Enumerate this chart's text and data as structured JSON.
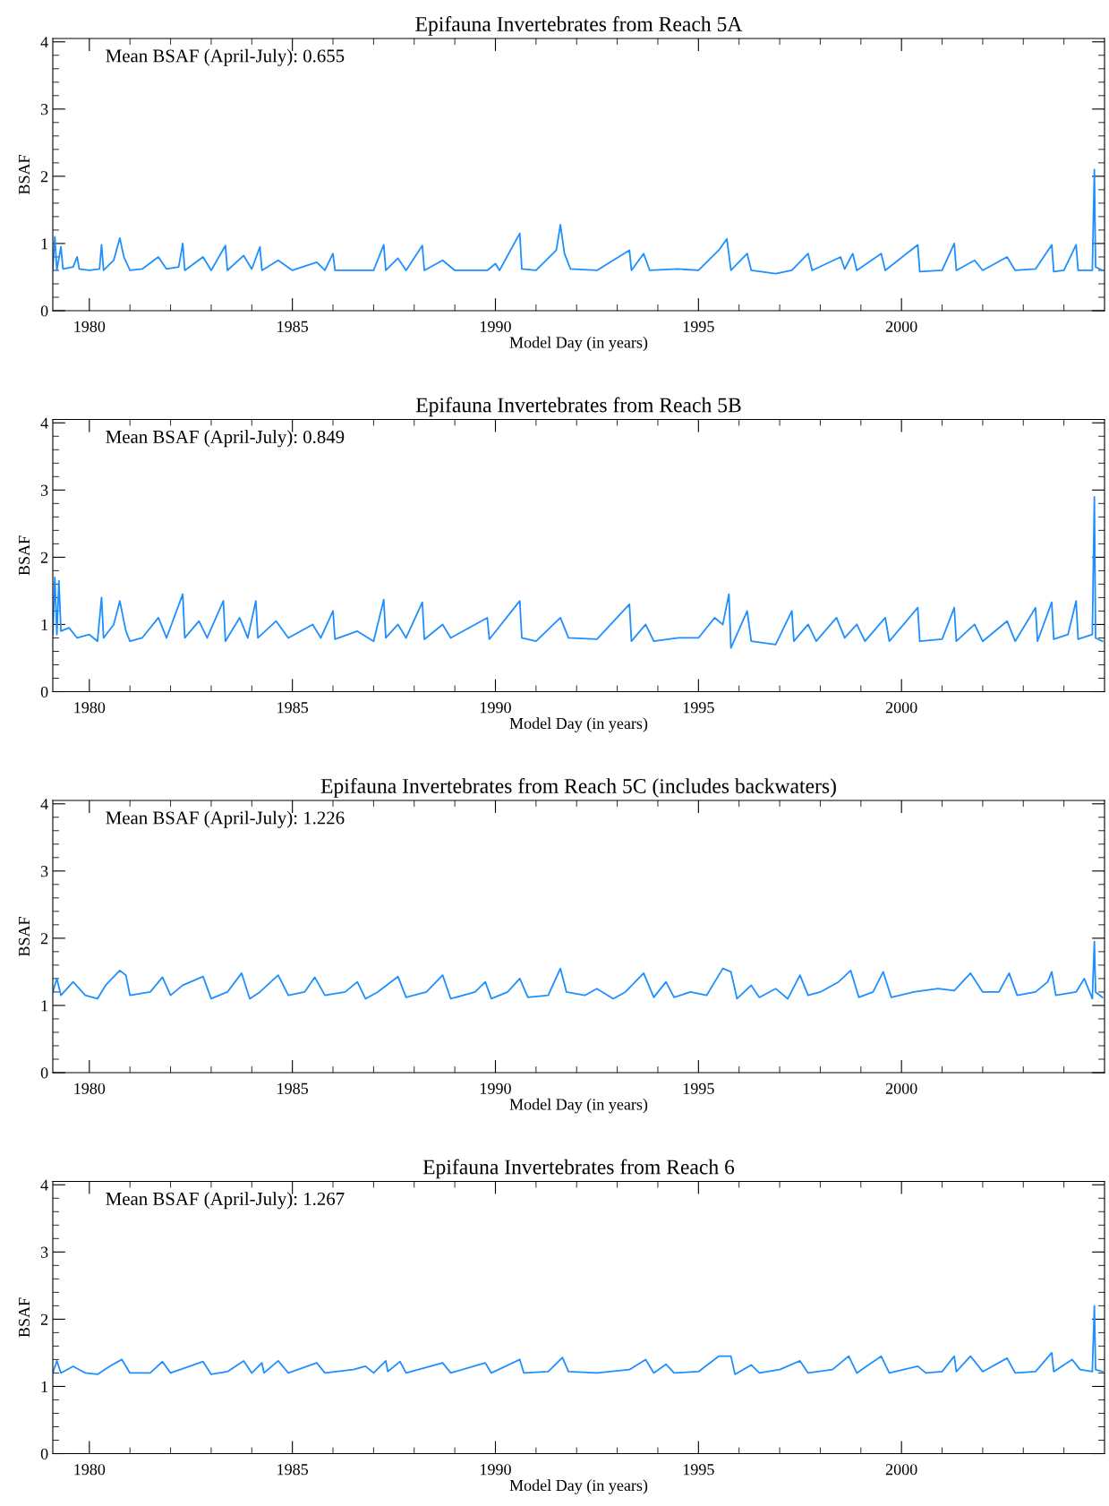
{
  "chart_data": [
    {
      "type": "line",
      "title": "Epifauna Invertebrates from Reach 5A",
      "xlabel": "Model Day (in years)",
      "ylabel": "BSAF",
      "annotations": [
        "Mean BSAF (April-July): 0.655"
      ],
      "xlim": [
        1979.1,
        2005.0
      ],
      "ylim": [
        0,
        4.05
      ],
      "xticks": [
        1980,
        {
          "value": 1981,
          "label": null
        },
        {
          "value": 1982,
          "label": null
        },
        {
          "value": 1983,
          "label": null
        },
        {
          "value": 1984,
          "label": null
        },
        1985,
        {
          "value": 1986,
          "label": null
        },
        {
          "value": 1987,
          "label": null
        },
        {
          "value": 1988,
          "label": null
        },
        {
          "value": 1989,
          "label": null
        },
        1990,
        {
          "value": 1991,
          "label": null
        },
        {
          "value": 1992,
          "label": null
        },
        {
          "value": 1993,
          "label": null
        },
        {
          "value": 1994,
          "label": null
        },
        1995,
        {
          "value": 1996,
          "label": null
        },
        {
          "value": 1997,
          "label": null
        },
        {
          "value": 1998,
          "label": null
        },
        {
          "value": 1999,
          "label": null
        },
        2000,
        {
          "value": 2001,
          "label": null
        },
        {
          "value": 2002,
          "label": null
        },
        {
          "value": 2003,
          "label": null
        },
        {
          "value": 2004,
          "label": null
        }
      ],
      "yticks": [
        0,
        {
          "value": 0.2,
          "label": null
        },
        {
          "value": 0.4,
          "label": null
        },
        {
          "value": 0.6,
          "label": null
        },
        {
          "value": 0.8,
          "label": null
        },
        1,
        {
          "value": 1.2,
          "label": null
        },
        {
          "value": 1.4,
          "label": null
        },
        {
          "value": 1.6,
          "label": null
        },
        {
          "value": 1.8,
          "label": null
        },
        2,
        {
          "value": 2.2,
          "label": null
        },
        {
          "value": 2.4,
          "label": null
        },
        {
          "value": 2.6,
          "label": null
        },
        {
          "value": 2.8,
          "label": null
        },
        3,
        {
          "value": 3.2,
          "label": null
        },
        {
          "value": 3.4,
          "label": null
        },
        {
          "value": 3.6,
          "label": null
        },
        {
          "value": 3.8,
          "label": null
        },
        4
      ],
      "x": [
        1979.1,
        1979.15,
        1979.2,
        1979.3,
        1979.35,
        1979.6,
        1979.7,
        1979.75,
        1980.0,
        1980.25,
        1980.3,
        1980.35,
        1980.6,
        1980.75,
        1980.85,
        1981.0,
        1981.3,
        1981.7,
        1981.9,
        1982.2,
        1982.3,
        1982.35,
        1982.8,
        1983.0,
        1983.35,
        1983.4,
        1983.8,
        1984.0,
        1984.2,
        1984.25,
        1984.65,
        1985.0,
        1985.6,
        1985.8,
        1986.0,
        1986.05,
        1987.0,
        1987.25,
        1987.3,
        1987.6,
        1987.8,
        1988.2,
        1988.25,
        1988.7,
        1989.0,
        1989.8,
        1990.0,
        1990.1,
        1990.6,
        1990.65,
        1991.0,
        1991.5,
        1991.6,
        1991.7,
        1991.85,
        1992.5,
        1993.3,
        1993.35,
        1993.65,
        1993.8,
        1994.5,
        1995.0,
        1995.5,
        1995.7,
        1995.8,
        1996.2,
        1996.3,
        1996.9,
        1997.3,
        1997.7,
        1997.8,
        1998.5,
        1998.6,
        1998.8,
        1998.9,
        1999.5,
        1999.6,
        2000.4,
        2000.45,
        2001.0,
        2001.3,
        2001.35,
        2001.8,
        2002.0,
        2002.6,
        2002.8,
        2003.3,
        2003.7,
        2003.75,
        2004.0,
        2004.3,
        2004.35,
        2004.7,
        2004.75,
        2004.78,
        2004.95
      ],
      "series": [
        {
          "color": "#1e8fff",
          "values": [
            0.62,
            1.1,
            0.6,
            0.95,
            0.62,
            0.65,
            0.8,
            0.62,
            0.6,
            0.62,
            0.98,
            0.6,
            0.75,
            1.08,
            0.8,
            0.6,
            0.62,
            0.8,
            0.62,
            0.65,
            1.0,
            0.6,
            0.8,
            0.6,
            0.97,
            0.6,
            0.82,
            0.62,
            0.95,
            0.6,
            0.75,
            0.6,
            0.72,
            0.6,
            0.85,
            0.6,
            0.6,
            0.98,
            0.6,
            0.78,
            0.6,
            0.97,
            0.6,
            0.75,
            0.6,
            0.6,
            0.7,
            0.6,
            1.15,
            0.62,
            0.6,
            0.9,
            1.28,
            0.85,
            0.62,
            0.6,
            0.9,
            0.6,
            0.85,
            0.6,
            0.62,
            0.6,
            0.9,
            1.07,
            0.6,
            0.85,
            0.6,
            0.55,
            0.6,
            0.85,
            0.6,
            0.8,
            0.62,
            0.85,
            0.6,
            0.85,
            0.6,
            0.98,
            0.58,
            0.6,
            1.0,
            0.6,
            0.75,
            0.6,
            0.8,
            0.6,
            0.62,
            0.98,
            0.58,
            0.6,
            0.98,
            0.6,
            0.6,
            2.1,
            0.65,
            0.6
          ]
        }
      ]
    },
    {
      "type": "line",
      "title": "Epifauna Invertebrates from Reach 5B",
      "xlabel": "Model Day (in years)",
      "ylabel": "BSAF",
      "annotations": [
        "Mean BSAF (April-July): 0.849"
      ],
      "xlim": [
        1979.1,
        2005.0
      ],
      "ylim": [
        0,
        4.05
      ],
      "xticks": [
        1980,
        {
          "value": 1981,
          "label": null
        },
        {
          "value": 1982,
          "label": null
        },
        {
          "value": 1983,
          "label": null
        },
        {
          "value": 1984,
          "label": null
        },
        1985,
        {
          "value": 1986,
          "label": null
        },
        {
          "value": 1987,
          "label": null
        },
        {
          "value": 1988,
          "label": null
        },
        {
          "value": 1989,
          "label": null
        },
        1990,
        {
          "value": 1991,
          "label": null
        },
        {
          "value": 1992,
          "label": null
        },
        {
          "value": 1993,
          "label": null
        },
        {
          "value": 1994,
          "label": null
        },
        1995,
        {
          "value": 1996,
          "label": null
        },
        {
          "value": 1997,
          "label": null
        },
        {
          "value": 1998,
          "label": null
        },
        {
          "value": 1999,
          "label": null
        },
        2000,
        {
          "value": 2001,
          "label": null
        },
        {
          "value": 2002,
          "label": null
        },
        {
          "value": 2003,
          "label": null
        },
        {
          "value": 2004,
          "label": null
        }
      ],
      "yticks": [
        0,
        {
          "value": 0.2,
          "label": null
        },
        {
          "value": 0.4,
          "label": null
        },
        {
          "value": 0.6,
          "label": null
        },
        {
          "value": 0.8,
          "label": null
        },
        1,
        {
          "value": 1.2,
          "label": null
        },
        {
          "value": 1.4,
          "label": null
        },
        {
          "value": 1.6,
          "label": null
        },
        {
          "value": 1.8,
          "label": null
        },
        2,
        {
          "value": 2.2,
          "label": null
        },
        {
          "value": 2.4,
          "label": null
        },
        {
          "value": 2.6,
          "label": null
        },
        {
          "value": 2.8,
          "label": null
        },
        3,
        {
          "value": 3.2,
          "label": null
        },
        {
          "value": 3.4,
          "label": null
        },
        {
          "value": 3.6,
          "label": null
        },
        {
          "value": 3.8,
          "label": null
        },
        4
      ],
      "x": [
        1979.1,
        1979.15,
        1979.2,
        1979.25,
        1979.3,
        1979.5,
        1979.7,
        1980.0,
        1980.2,
        1980.3,
        1980.35,
        1980.6,
        1980.75,
        1980.9,
        1981.0,
        1981.3,
        1981.7,
        1981.9,
        1982.3,
        1982.35,
        1982.7,
        1982.9,
        1983.3,
        1983.35,
        1983.7,
        1983.9,
        1984.1,
        1984.15,
        1984.6,
        1984.9,
        1985.5,
        1985.7,
        1986.0,
        1986.05,
        1986.6,
        1987.0,
        1987.25,
        1987.3,
        1987.6,
        1987.8,
        1988.2,
        1988.25,
        1988.7,
        1988.9,
        1989.8,
        1989.85,
        1990.6,
        1990.65,
        1991.0,
        1991.6,
        1991.8,
        1992.5,
        1993.3,
        1993.35,
        1993.7,
        1993.9,
        1994.5,
        1995.0,
        1995.4,
        1995.6,
        1995.75,
        1995.8,
        1996.2,
        1996.3,
        1996.9,
        1997.3,
        1997.35,
        1997.7,
        1997.9,
        1998.4,
        1998.6,
        1998.9,
        1999.1,
        1999.6,
        1999.7,
        2000.4,
        2000.45,
        2001.0,
        2001.3,
        2001.35,
        2001.8,
        2002.0,
        2002.6,
        2002.8,
        2003.3,
        2003.35,
        2003.7,
        2003.75,
        2004.1,
        2004.3,
        2004.35,
        2004.7,
        2004.75,
        2004.78,
        2004.95
      ],
      "series": [
        {
          "color": "#1e8fff",
          "values": [
            0.85,
            1.7,
            0.85,
            1.65,
            0.9,
            0.95,
            0.8,
            0.85,
            0.75,
            1.4,
            0.8,
            1.0,
            1.35,
            0.9,
            0.75,
            0.8,
            1.1,
            0.8,
            1.45,
            0.8,
            1.05,
            0.8,
            1.35,
            0.75,
            1.1,
            0.8,
            1.35,
            0.8,
            1.05,
            0.8,
            1.0,
            0.8,
            1.2,
            0.78,
            0.9,
            0.75,
            1.37,
            0.8,
            1.0,
            0.8,
            1.33,
            0.78,
            1.0,
            0.8,
            1.1,
            0.78,
            1.35,
            0.8,
            0.75,
            1.1,
            0.8,
            0.78,
            1.3,
            0.75,
            1.0,
            0.75,
            0.8,
            0.8,
            1.1,
            1.0,
            1.45,
            0.65,
            1.2,
            0.75,
            0.7,
            1.2,
            0.75,
            1.0,
            0.75,
            1.1,
            0.8,
            1.0,
            0.75,
            1.1,
            0.75,
            1.25,
            0.75,
            0.78,
            1.25,
            0.75,
            1.0,
            0.75,
            1.05,
            0.75,
            1.25,
            0.75,
            1.33,
            0.78,
            0.85,
            1.35,
            0.78,
            0.85,
            2.9,
            0.8,
            0.75
          ]
        }
      ]
    },
    {
      "type": "line",
      "title": "Epifauna Invertebrates from Reach 5C (includes backwaters)",
      "xlabel": "Model Day (in years)",
      "ylabel": "BSAF",
      "annotations": [
        "Mean BSAF (April-July): 1.226"
      ],
      "xlim": [
        1979.1,
        2005.0
      ],
      "ylim": [
        0,
        4.05
      ],
      "xticks": [
        1980,
        {
          "value": 1981,
          "label": null
        },
        {
          "value": 1982,
          "label": null
        },
        {
          "value": 1983,
          "label": null
        },
        {
          "value": 1984,
          "label": null
        },
        1985,
        {
          "value": 1986,
          "label": null
        },
        {
          "value": 1987,
          "label": null
        },
        {
          "value": 1988,
          "label": null
        },
        {
          "value": 1989,
          "label": null
        },
        1990,
        {
          "value": 1991,
          "label": null
        },
        {
          "value": 1992,
          "label": null
        },
        {
          "value": 1993,
          "label": null
        },
        {
          "value": 1994,
          "label": null
        },
        1995,
        {
          "value": 1996,
          "label": null
        },
        {
          "value": 1997,
          "label": null
        },
        {
          "value": 1998,
          "label": null
        },
        {
          "value": 1999,
          "label": null
        },
        2000,
        {
          "value": 2001,
          "label": null
        },
        {
          "value": 2002,
          "label": null
        },
        {
          "value": 2003,
          "label": null
        },
        {
          "value": 2004,
          "label": null
        }
      ],
      "yticks": [
        0,
        {
          "value": 0.2,
          "label": null
        },
        {
          "value": 0.4,
          "label": null
        },
        {
          "value": 0.6,
          "label": null
        },
        {
          "value": 0.8,
          "label": null
        },
        1,
        {
          "value": 1.2,
          "label": null
        },
        {
          "value": 1.4,
          "label": null
        },
        {
          "value": 1.6,
          "label": null
        },
        {
          "value": 1.8,
          "label": null
        },
        2,
        {
          "value": 2.2,
          "label": null
        },
        {
          "value": 2.4,
          "label": null
        },
        {
          "value": 2.6,
          "label": null
        },
        {
          "value": 2.8,
          "label": null
        },
        3,
        {
          "value": 3.2,
          "label": null
        },
        {
          "value": 3.4,
          "label": null
        },
        {
          "value": 3.6,
          "label": null
        },
        {
          "value": 3.8,
          "label": null
        },
        4
      ],
      "x": [
        1979.1,
        1979.2,
        1979.3,
        1979.6,
        1979.9,
        1980.2,
        1980.4,
        1980.75,
        1980.9,
        1981.0,
        1981.5,
        1981.8,
        1982.0,
        1982.3,
        1982.8,
        1983.0,
        1983.4,
        1983.75,
        1983.95,
        1984.2,
        1984.65,
        1984.9,
        1985.3,
        1985.55,
        1985.8,
        1986.3,
        1986.6,
        1986.8,
        1987.1,
        1987.6,
        1987.8,
        1988.3,
        1988.7,
        1988.9,
        1989.5,
        1989.75,
        1989.9,
        1990.3,
        1990.6,
        1990.8,
        1991.3,
        1991.6,
        1991.75,
        1992.2,
        1992.5,
        1992.9,
        1993.2,
        1993.65,
        1993.9,
        1994.2,
        1994.4,
        1994.8,
        1995.2,
        1995.6,
        1995.8,
        1995.95,
        1996.3,
        1996.5,
        1996.9,
        1997.2,
        1997.5,
        1997.7,
        1998.0,
        1998.45,
        1998.75,
        1998.95,
        1999.3,
        1999.55,
        1999.75,
        2000.3,
        2000.9,
        2001.3,
        2001.7,
        2002.0,
        2002.4,
        2002.65,
        2002.85,
        2003.3,
        2003.6,
        2003.7,
        2003.8,
        2004.3,
        2004.5,
        2004.7,
        2004.75,
        2004.78,
        2004.95
      ],
      "series": [
        {
          "color": "#1e8fff",
          "values": [
            1.2,
            1.4,
            1.15,
            1.35,
            1.15,
            1.1,
            1.3,
            1.52,
            1.45,
            1.15,
            1.2,
            1.42,
            1.15,
            1.3,
            1.43,
            1.1,
            1.2,
            1.48,
            1.1,
            1.2,
            1.45,
            1.15,
            1.2,
            1.42,
            1.15,
            1.2,
            1.35,
            1.1,
            1.2,
            1.43,
            1.12,
            1.2,
            1.45,
            1.1,
            1.2,
            1.35,
            1.1,
            1.2,
            1.4,
            1.12,
            1.15,
            1.55,
            1.2,
            1.15,
            1.25,
            1.1,
            1.2,
            1.48,
            1.12,
            1.35,
            1.12,
            1.2,
            1.15,
            1.55,
            1.5,
            1.1,
            1.3,
            1.12,
            1.25,
            1.1,
            1.45,
            1.15,
            1.2,
            1.35,
            1.52,
            1.12,
            1.2,
            1.5,
            1.12,
            1.2,
            1.25,
            1.22,
            1.48,
            1.2,
            1.2,
            1.48,
            1.15,
            1.2,
            1.35,
            1.5,
            1.15,
            1.2,
            1.4,
            1.1,
            1.95,
            1.2,
            1.12
          ]
        }
      ]
    },
    {
      "type": "line",
      "title": "Epifauna Invertebrates from Reach 6",
      "xlabel": "Model Day (in years)",
      "ylabel": "BSAF",
      "annotations": [
        "Mean BSAF (April-July): 1.267"
      ],
      "xlim": [
        1979.1,
        2005.0
      ],
      "ylim": [
        0,
        4.05
      ],
      "xticks": [
        1980,
        {
          "value": 1981,
          "label": null
        },
        {
          "value": 1982,
          "label": null
        },
        {
          "value": 1983,
          "label": null
        },
        {
          "value": 1984,
          "label": null
        },
        1985,
        {
          "value": 1986,
          "label": null
        },
        {
          "value": 1987,
          "label": null
        },
        {
          "value": 1988,
          "label": null
        },
        {
          "value": 1989,
          "label": null
        },
        1990,
        {
          "value": 1991,
          "label": null
        },
        {
          "value": 1992,
          "label": null
        },
        {
          "value": 1993,
          "label": null
        },
        {
          "value": 1994,
          "label": null
        },
        1995,
        {
          "value": 1996,
          "label": null
        },
        {
          "value": 1997,
          "label": null
        },
        {
          "value": 1998,
          "label": null
        },
        {
          "value": 1999,
          "label": null
        },
        2000,
        {
          "value": 2001,
          "label": null
        },
        {
          "value": 2002,
          "label": null
        },
        {
          "value": 2003,
          "label": null
        },
        {
          "value": 2004,
          "label": null
        }
      ],
      "yticks": [
        0,
        {
          "value": 0.2,
          "label": null
        },
        {
          "value": 0.4,
          "label": null
        },
        {
          "value": 0.6,
          "label": null
        },
        {
          "value": 0.8,
          "label": null
        },
        1,
        {
          "value": 1.2,
          "label": null
        },
        {
          "value": 1.4,
          "label": null
        },
        {
          "value": 1.6,
          "label": null
        },
        {
          "value": 1.8,
          "label": null
        },
        2,
        {
          "value": 2.2,
          "label": null
        },
        {
          "value": 2.4,
          "label": null
        },
        {
          "value": 2.6,
          "label": null
        },
        {
          "value": 2.8,
          "label": null
        },
        3,
        {
          "value": 3.2,
          "label": null
        },
        {
          "value": 3.4,
          "label": null
        },
        {
          "value": 3.6,
          "label": null
        },
        {
          "value": 3.8,
          "label": null
        },
        4
      ],
      "x": [
        1979.1,
        1979.2,
        1979.3,
        1979.6,
        1979.9,
        1980.2,
        1980.5,
        1980.8,
        1981.0,
        1981.5,
        1981.8,
        1982.0,
        1982.8,
        1983.0,
        1983.4,
        1983.8,
        1984.0,
        1984.25,
        1984.3,
        1984.65,
        1984.9,
        1985.6,
        1985.8,
        1986.5,
        1986.8,
        1987.0,
        1987.3,
        1987.35,
        1987.65,
        1987.8,
        1988.7,
        1988.9,
        1989.75,
        1989.9,
        1990.6,
        1990.7,
        1991.3,
        1991.65,
        1991.8,
        1992.5,
        1993.3,
        1993.7,
        1993.9,
        1994.2,
        1994.4,
        1995.0,
        1995.5,
        1995.8,
        1995.9,
        1996.3,
        1996.5,
        1997.0,
        1997.5,
        1997.7,
        1998.3,
        1998.7,
        1998.9,
        1999.5,
        1999.7,
        2000.4,
        2000.6,
        2001.0,
        2001.3,
        2001.35,
        2001.7,
        2002.0,
        2002.6,
        2002.8,
        2003.3,
        2003.7,
        2003.75,
        2004.2,
        2004.4,
        2004.7,
        2004.75,
        2004.78,
        2004.95
      ],
      "series": [
        {
          "color": "#1e8fff",
          "values": [
            1.2,
            1.38,
            1.2,
            1.3,
            1.2,
            1.18,
            1.3,
            1.4,
            1.2,
            1.2,
            1.37,
            1.2,
            1.37,
            1.18,
            1.22,
            1.38,
            1.2,
            1.35,
            1.2,
            1.38,
            1.2,
            1.35,
            1.2,
            1.25,
            1.3,
            1.2,
            1.38,
            1.22,
            1.37,
            1.2,
            1.35,
            1.2,
            1.35,
            1.2,
            1.4,
            1.2,
            1.22,
            1.43,
            1.22,
            1.2,
            1.25,
            1.4,
            1.2,
            1.33,
            1.2,
            1.22,
            1.45,
            1.45,
            1.18,
            1.32,
            1.2,
            1.25,
            1.38,
            1.2,
            1.25,
            1.45,
            1.2,
            1.45,
            1.2,
            1.3,
            1.2,
            1.22,
            1.45,
            1.22,
            1.45,
            1.22,
            1.42,
            1.2,
            1.22,
            1.5,
            1.22,
            1.4,
            1.25,
            1.22,
            2.2,
            1.25,
            1.22
          ]
        }
      ]
    }
  ]
}
